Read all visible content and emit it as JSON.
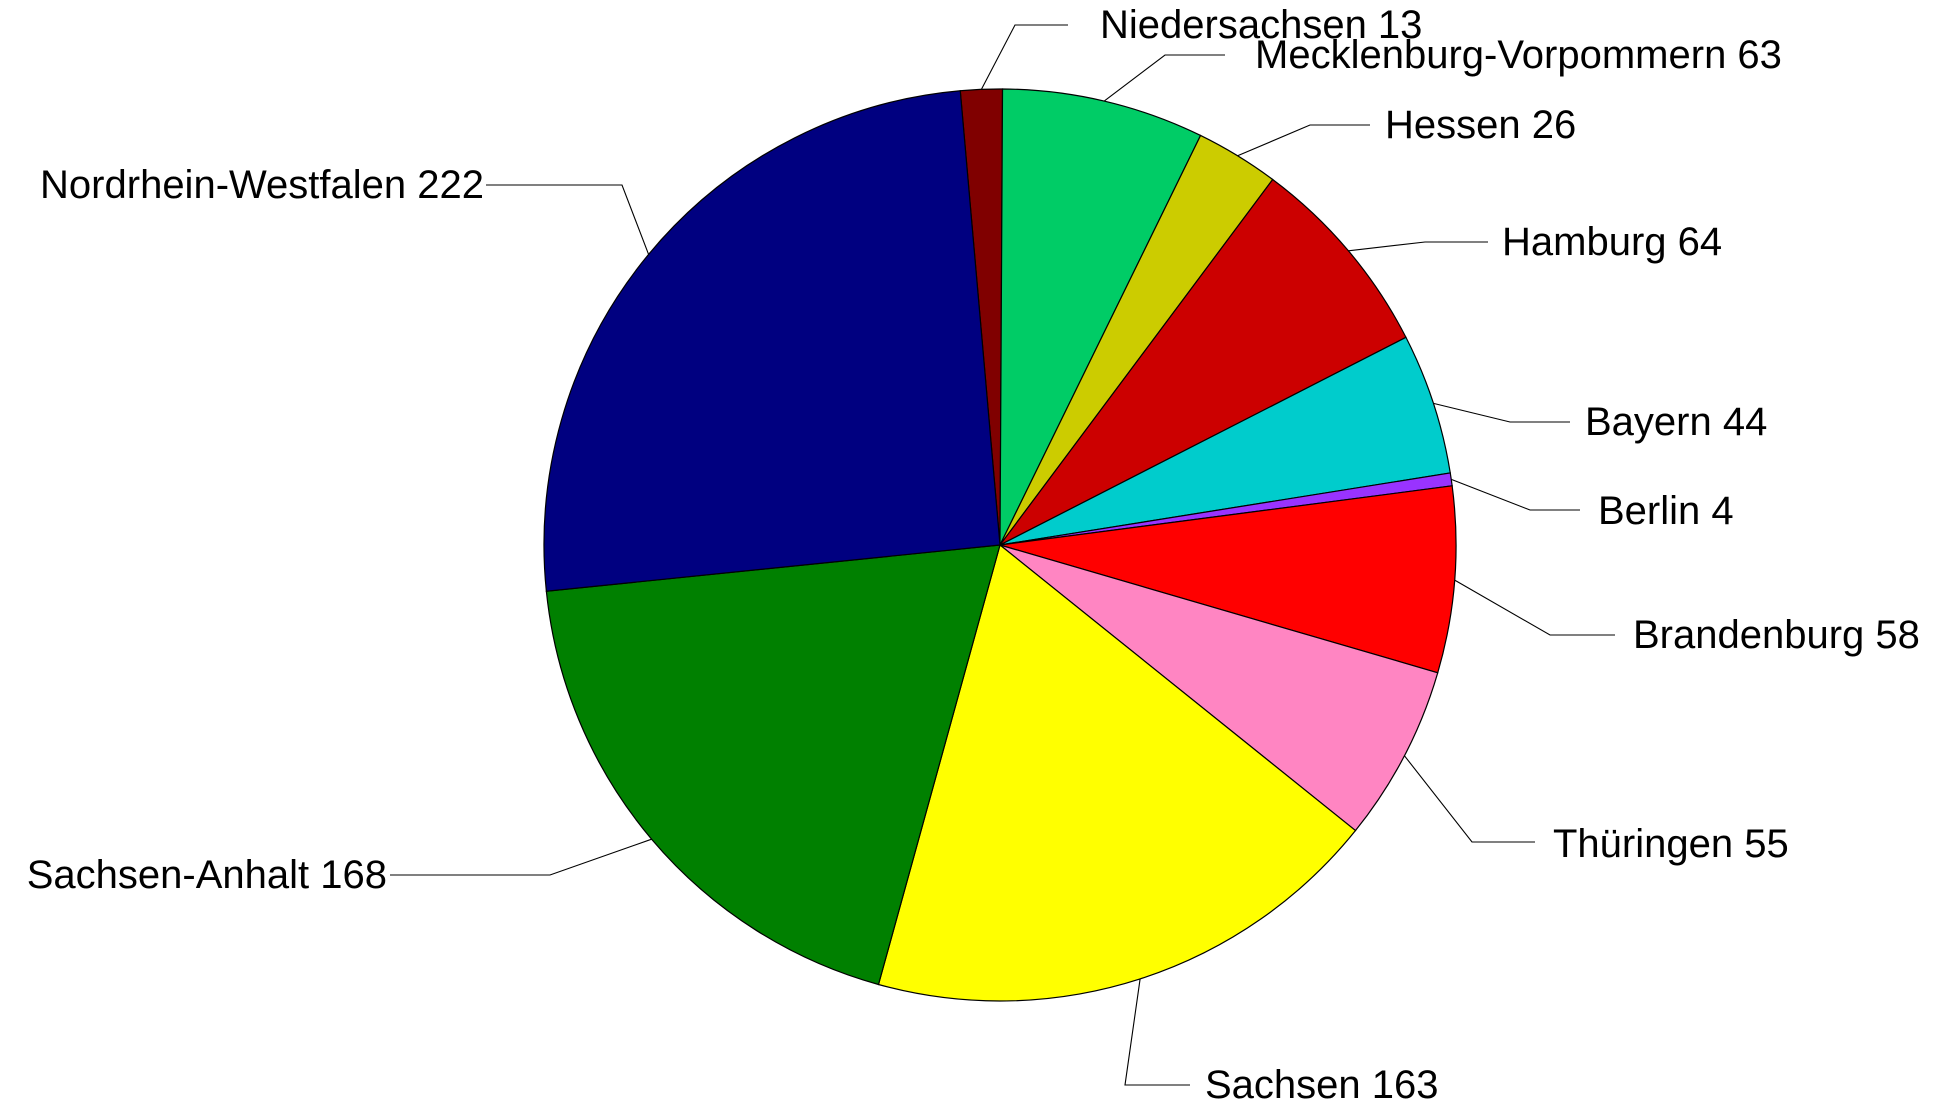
{
  "chart_data": {
    "type": "pie",
    "title": "",
    "start_angle_deg": -5,
    "slices": [
      {
        "label": "Niedersachsen",
        "value": 13,
        "text": "Niedersachsen 13",
        "color": "#800000"
      },
      {
        "label": "Mecklenburg-Vorpommern",
        "value": 63,
        "text": "Mecklenburg-Vorpommern 63",
        "color": "#00CC66"
      },
      {
        "label": "Hessen",
        "value": 26,
        "text": "Hessen 26",
        "color": "#CCCC00"
      },
      {
        "label": "Hamburg",
        "value": 64,
        "text": "Hamburg 64",
        "color": "#CC0000"
      },
      {
        "label": "Bayern",
        "value": 44,
        "text": "Bayern 44",
        "color": "#00CCCC"
      },
      {
        "label": "Berlin",
        "value": 4,
        "text": "Berlin 4",
        "color": "#9933FF"
      },
      {
        "label": "Brandenburg",
        "value": 58,
        "text": "Brandenburg 58",
        "color": "#FF0000"
      },
      {
        "label": "Thüringen",
        "value": 55,
        "text": "Thüringen 55",
        "color": "#FF85C2"
      },
      {
        "label": "Sachsen",
        "value": 163,
        "text": "Sachsen 163",
        "color": "#FFFF00"
      },
      {
        "label": "Sachsen-Anhalt",
        "value": 168,
        "text": "Sachsen-Anhalt 168",
        "color": "#008000"
      },
      {
        "label": "Nordrhein-Westfalen",
        "value": 222,
        "text": "Nordrhein-Westfalen 222",
        "color": "#000080"
      }
    ]
  }
}
